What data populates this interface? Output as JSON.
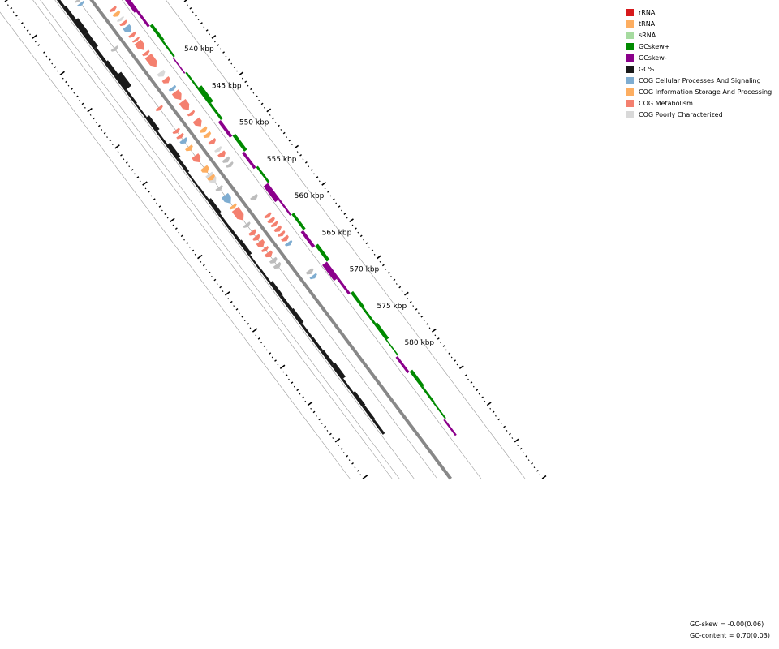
{
  "legend": {
    "items": [
      {
        "label": "rRNA",
        "color": "#d7191c"
      },
      {
        "label": "tRNA",
        "color": "#fdae61"
      },
      {
        "label": "sRNA",
        "color": "#a6dba0"
      },
      {
        "label": "GCskew+",
        "color": "#008a00"
      },
      {
        "label": "GCskew-",
        "color": "#8b008b"
      },
      {
        "label": "GC%",
        "color": "#1a1a1a"
      },
      {
        "label": "COG Cellular Processes And Signaling",
        "color": "#7fadd1"
      },
      {
        "label": "COG Information Storage And Processing",
        "color": "#fdae61"
      },
      {
        "label": "COG Metabolism",
        "color": "#f4806f"
      },
      {
        "label": "COG Poorly Characterized",
        "color": "#d9d9d9"
      }
    ]
  },
  "stats": {
    "gc_skew": "GC-skew = -0.00(0.06)",
    "gc_content": "GC-content = 0.70(0.03)"
  },
  "scale": {
    "ticks": [
      {
        "label": "540 kbp",
        "value": 540
      },
      {
        "label": "545 kbp",
        "value": 545
      },
      {
        "label": "550 kbp",
        "value": 550
      },
      {
        "label": "555 kbp",
        "value": 555
      },
      {
        "label": "560 kbp",
        "value": 560
      },
      {
        "label": "565 kbp",
        "value": 565
      },
      {
        "label": "570 kbp",
        "value": 570
      },
      {
        "label": "575 kbp",
        "value": 575
      },
      {
        "label": "580 kbp",
        "value": 580
      }
    ]
  },
  "colors": {
    "backbone": "#888888",
    "guide": "#999999",
    "ticks": "#000000",
    "other_gene": "#bdbdbd"
  },
  "features": {
    "outer": [
      {
        "s": 534.7,
        "e": 535.0,
        "cat": "other"
      },
      {
        "s": 535.2,
        "e": 535.5,
        "cat": "cps"
      },
      {
        "s": 541.3,
        "e": 541.7,
        "cat": "other"
      },
      {
        "s": 549.4,
        "e": 549.8,
        "cat": "met"
      },
      {
        "s": 552.5,
        "e": 552.9,
        "cat": "met"
      },
      {
        "s": 553.2,
        "e": 553.6,
        "cat": "met"
      },
      {
        "s": 553.8,
        "e": 554.3,
        "cat": "cps"
      },
      {
        "s": 554.8,
        "e": 555.3,
        "cat": "isp"
      },
      {
        "s": 556.0,
        "e": 556.9,
        "cat": "met"
      },
      {
        "s": 557.6,
        "e": 558.3,
        "cat": "isp"
      },
      {
        "s": 558.5,
        "e": 559.8,
        "cat": "poor"
      },
      {
        "s": 558.8,
        "e": 559.3,
        "cat": "isp"
      },
      {
        "s": 560.3,
        "e": 560.7,
        "cat": "other"
      },
      {
        "s": 561.4,
        "e": 562.5,
        "cat": "cps"
      },
      {
        "s": 562.8,
        "e": 563.2,
        "cat": "isp"
      },
      {
        "s": 563.3,
        "e": 564.8,
        "cat": "met"
      },
      {
        "s": 565.3,
        "e": 565.7,
        "cat": "other"
      },
      {
        "s": 566.3,
        "e": 566.8,
        "cat": "met"
      },
      {
        "s": 567.0,
        "e": 567.5,
        "cat": "met"
      },
      {
        "s": 567.7,
        "e": 568.4,
        "cat": "met"
      },
      {
        "s": 568.6,
        "e": 569.0,
        "cat": "met"
      },
      {
        "s": 569.2,
        "e": 569.8,
        "cat": "met"
      },
      {
        "s": 570.1,
        "e": 570.6,
        "cat": "other"
      },
      {
        "s": 570.8,
        "e": 571.3,
        "cat": "other"
      }
    ],
    "inner": [
      {
        "s": 535.9,
        "e": 536.3,
        "cat": "met"
      },
      {
        "s": 536.5,
        "e": 537.0,
        "cat": "isp"
      },
      {
        "s": 537.3,
        "e": 537.6,
        "cat": "poor"
      },
      {
        "s": 537.8,
        "e": 538.2,
        "cat": "met"
      },
      {
        "s": 538.4,
        "e": 539.2,
        "cat": "cps"
      },
      {
        "s": 539.4,
        "e": 539.8,
        "cat": "met"
      },
      {
        "s": 540.1,
        "e": 540.4,
        "cat": "met"
      },
      {
        "s": 540.5,
        "e": 541.6,
        "cat": "met"
      },
      {
        "s": 541.9,
        "e": 542.3,
        "cat": "met"
      },
      {
        "s": 542.4,
        "e": 543.9,
        "cat": "met"
      },
      {
        "s": 544.6,
        "e": 545.2,
        "cat": "poor"
      },
      {
        "s": 545.5,
        "e": 546.1,
        "cat": "met"
      },
      {
        "s": 546.7,
        "e": 547.1,
        "cat": "cps"
      },
      {
        "s": 547.3,
        "e": 548.4,
        "cat": "met"
      },
      {
        "s": 548.6,
        "e": 549.8,
        "cat": "met"
      },
      {
        "s": 550.1,
        "e": 550.5,
        "cat": "met"
      },
      {
        "s": 551.1,
        "e": 552.0,
        "cat": "met"
      },
      {
        "s": 552.3,
        "e": 552.8,
        "cat": "isp"
      },
      {
        "s": 553.0,
        "e": 553.5,
        "cat": "isp"
      },
      {
        "s": 553.9,
        "e": 554.4,
        "cat": "met"
      },
      {
        "s": 555.0,
        "e": 555.4,
        "cat": "poor"
      },
      {
        "s": 555.6,
        "e": 556.2,
        "cat": "met"
      },
      {
        "s": 556.4,
        "e": 556.9,
        "cat": "other"
      },
      {
        "s": 557.1,
        "e": 557.5,
        "cat": "other"
      },
      {
        "s": 561.5,
        "e": 562.0,
        "cat": "other"
      },
      {
        "s": 564.0,
        "e": 564.4,
        "cat": "met"
      },
      {
        "s": 564.6,
        "e": 565.1,
        "cat": "met"
      },
      {
        "s": 565.2,
        "e": 565.6,
        "cat": "met"
      },
      {
        "s": 565.8,
        "e": 566.3,
        "cat": "met"
      },
      {
        "s": 566.5,
        "e": 566.9,
        "cat": "met"
      },
      {
        "s": 567.1,
        "e": 567.6,
        "cat": "met"
      },
      {
        "s": 567.8,
        "e": 568.2,
        "cat": "cps"
      },
      {
        "s": 571.6,
        "e": 572.1,
        "cat": "other"
      },
      {
        "s": 572.3,
        "e": 572.7,
        "cat": "cps"
      }
    ]
  },
  "gc_profile": [
    0.4,
    0.55,
    0.85,
    0.75,
    0.45,
    0.65,
    1.15,
    0.35,
    0.25,
    0.65,
    0.3,
    0.7,
    0.45,
    0.25,
    0.3,
    0.6,
    0.35,
    0.4,
    0.55,
    0.25,
    0.3,
    0.55,
    0.45,
    0.6,
    0.35,
    0.4,
    0.5,
    0.7,
    0.3,
    0.55,
    0.45,
    0.35
  ],
  "skew_profile": [
    -0.7,
    -0.4,
    0.5,
    0.3,
    -0.2,
    0.3,
    0.85,
    0.4,
    -0.5,
    0.55,
    -0.45,
    0.35,
    -0.85,
    -0.3,
    0.45,
    -0.5,
    0.55,
    -0.9,
    -0.4,
    0.5,
    0.35,
    0.6,
    0.2,
    -0.4,
    0.55,
    0.35,
    0.25,
    -0.3
  ]
}
